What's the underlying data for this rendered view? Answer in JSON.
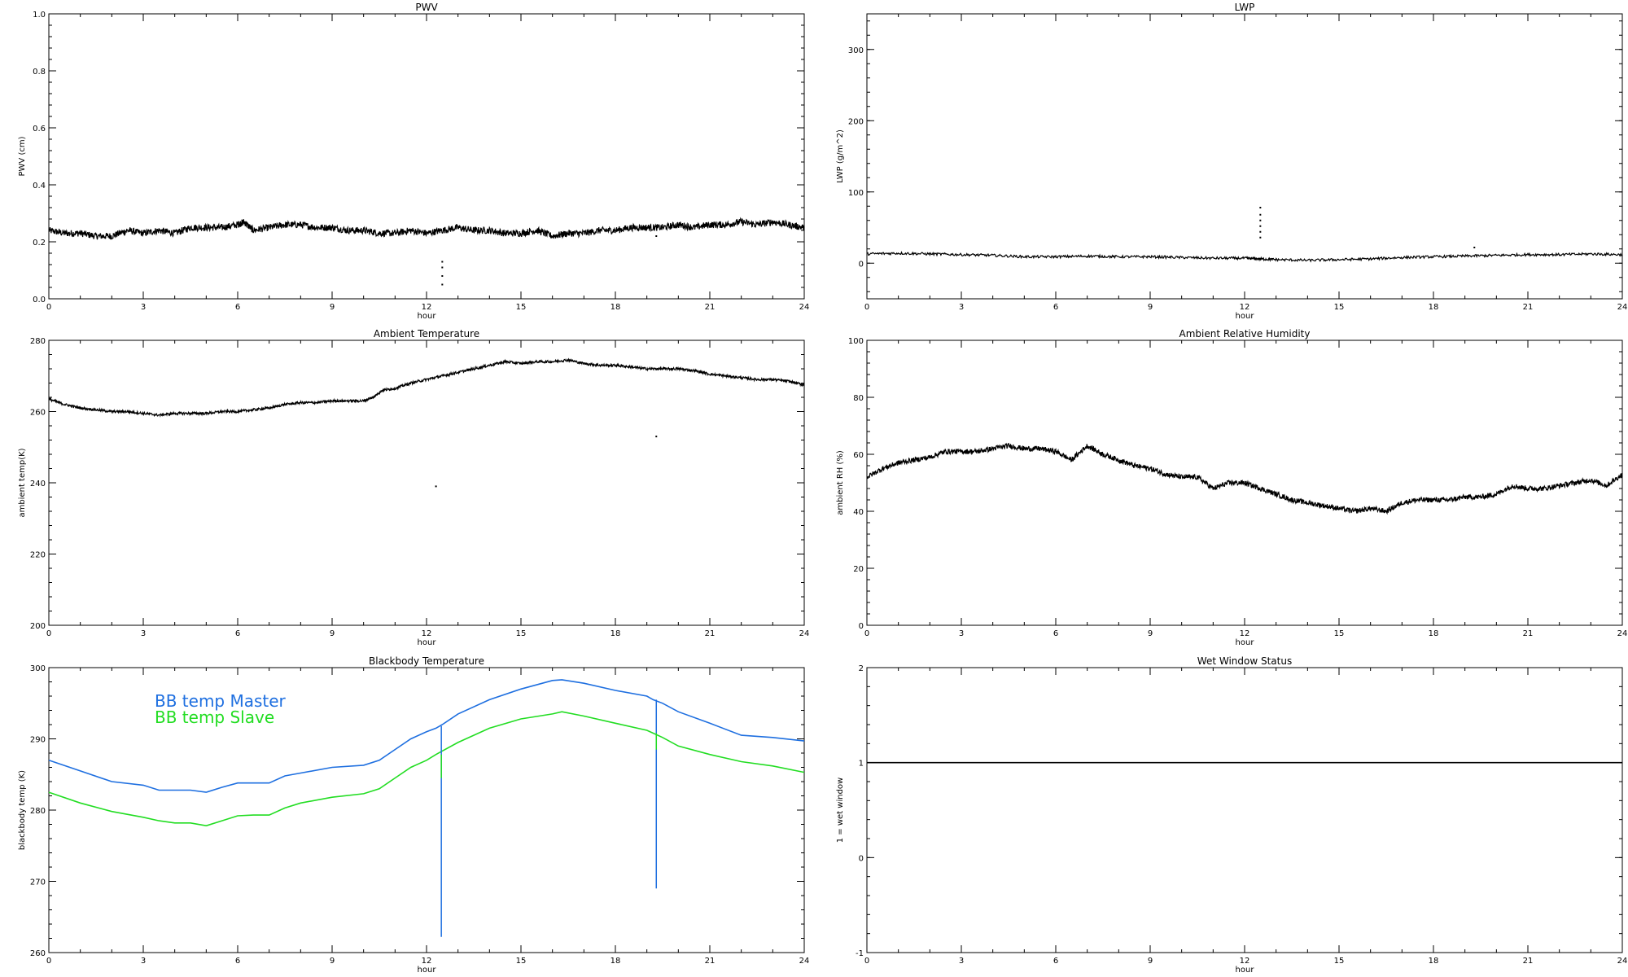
{
  "chart_data": [
    {
      "id": "pwv",
      "type": "line",
      "title": "PWV",
      "xlabel": "hour",
      "ylabel": "PWV (cm)",
      "xlim": [
        0,
        24
      ],
      "ylim": [
        0,
        1
      ],
      "xticks": [
        "0",
        "3",
        "6",
        "9",
        "12",
        "15",
        "18",
        "21",
        "24"
      ],
      "yticks": [
        "0.0",
        "0.2",
        "0.4",
        "0.6",
        "0.8",
        "1.0"
      ],
      "noise": 0.012,
      "series": [
        {
          "color": "#000000",
          "x": [
            0,
            0.5,
            1,
            1.5,
            2,
            2.5,
            3,
            3.5,
            4,
            4.5,
            5,
            5.5,
            6,
            6.2,
            6.5,
            7,
            7.5,
            8,
            8.5,
            9,
            9.5,
            10,
            10.5,
            11,
            11.5,
            12,
            12.5,
            13,
            13.5,
            14,
            14.5,
            15,
            15.5,
            16,
            16.5,
            17,
            17.5,
            18,
            18.5,
            19,
            19.5,
            20,
            20.5,
            21,
            21.5,
            22,
            22.5,
            23,
            23.5,
            24
          ],
          "y": [
            0.24,
            0.23,
            0.23,
            0.22,
            0.22,
            0.24,
            0.23,
            0.24,
            0.23,
            0.25,
            0.25,
            0.25,
            0.26,
            0.27,
            0.24,
            0.25,
            0.26,
            0.26,
            0.25,
            0.25,
            0.24,
            0.24,
            0.23,
            0.23,
            0.24,
            0.23,
            0.24,
            0.25,
            0.24,
            0.24,
            0.23,
            0.23,
            0.24,
            0.22,
            0.23,
            0.23,
            0.24,
            0.24,
            0.25,
            0.25,
            0.25,
            0.26,
            0.25,
            0.26,
            0.26,
            0.27,
            0.26,
            0.27,
            0.26,
            0.25
          ]
        }
      ],
      "outliers": {
        "x": [
          12.5,
          12.5,
          12.5,
          12.5,
          19.3
        ],
        "y": [
          0.13,
          0.11,
          0.08,
          0.05,
          0.22
        ]
      }
    },
    {
      "id": "lwp",
      "type": "line",
      "title": "LWP",
      "xlabel": "hour",
      "ylabel": "LWP (g/m^2)",
      "xlim": [
        0,
        24
      ],
      "ylim": [
        -50,
        350
      ],
      "xticks": [
        "0",
        "3",
        "6",
        "9",
        "12",
        "15",
        "18",
        "21",
        "24"
      ],
      "yticks": [
        "0",
        "100",
        "200",
        "300"
      ],
      "noise": 1.8,
      "series": [
        {
          "color": "#000000",
          "x": [
            0,
            1,
            2,
            3,
            4,
            5,
            6,
            7,
            8,
            9,
            10,
            11,
            12,
            12.5,
            13,
            14,
            15,
            16,
            17,
            18,
            19,
            20,
            21,
            22,
            23,
            24
          ],
          "y": [
            13,
            14,
            13,
            12,
            11,
            9,
            9,
            10,
            9,
            9,
            8,
            7,
            7,
            6,
            5,
            4,
            5,
            6,
            8,
            9,
            10,
            11,
            12,
            12,
            13,
            12
          ]
        }
      ],
      "outliers": {
        "x": [
          12.5,
          12.5,
          12.5,
          12.5,
          12.5,
          12.5,
          19.3
        ],
        "y": [
          78,
          68,
          60,
          52,
          44,
          36,
          22
        ]
      }
    },
    {
      "id": "ambient-temp",
      "type": "line",
      "title": "Ambient Temperature",
      "xlabel": "hour",
      "ylabel": "ambient temp(K)",
      "xlim": [
        0,
        24
      ],
      "ylim": [
        200,
        280
      ],
      "xticks": [
        "0",
        "3",
        "6",
        "9",
        "12",
        "15",
        "18",
        "21",
        "24"
      ],
      "yticks": [
        "200",
        "220",
        "240",
        "260",
        "280"
      ],
      "noise": 0.35,
      "series": [
        {
          "color": "#000000",
          "x": [
            0,
            0.5,
            1,
            1.5,
            2,
            2.5,
            3,
            3.5,
            4,
            4.5,
            5,
            5.5,
            6,
            6.5,
            7,
            7.5,
            8,
            8.5,
            9,
            9.5,
            10,
            10.3,
            10.6,
            11,
            11.5,
            12,
            12.5,
            13,
            13.5,
            14,
            14.5,
            15,
            15.5,
            16,
            16.5,
            17,
            17.5,
            18,
            18.5,
            19,
            19.5,
            20,
            20.5,
            21,
            21.5,
            22,
            22.5,
            23,
            23.5,
            24
          ],
          "y": [
            263.5,
            262,
            261,
            260.5,
            260,
            260,
            259.5,
            259,
            259.5,
            259.5,
            259.5,
            260,
            260,
            260.5,
            261,
            262,
            262.5,
            262.5,
            263,
            263,
            263,
            264,
            266,
            266.5,
            268,
            269,
            270,
            271,
            272,
            273,
            274,
            273.5,
            274,
            274,
            274.5,
            273.5,
            273,
            273,
            272.5,
            272,
            272,
            272,
            271.5,
            270.5,
            270,
            269.5,
            269,
            269,
            268.5,
            267.5
          ]
        }
      ],
      "outliers": {
        "x": [
          12.3,
          19.3
        ],
        "y": [
          239,
          253
        ]
      }
    },
    {
      "id": "ambient-rh",
      "type": "line",
      "title": "Ambient Relative Humidity",
      "xlabel": "hour",
      "ylabel": "ambient RH (%)",
      "xlim": [
        0,
        24
      ],
      "ylim": [
        0,
        100
      ],
      "xticks": [
        "0",
        "3",
        "6",
        "9",
        "12",
        "15",
        "18",
        "21",
        "24"
      ],
      "yticks": [
        "0",
        "20",
        "40",
        "60",
        "80",
        "100"
      ],
      "noise": 0.9,
      "series": [
        {
          "color": "#000000",
          "x": [
            0,
            0.5,
            1,
            1.5,
            2,
            2.5,
            3,
            3.5,
            4,
            4.5,
            5,
            5.5,
            6,
            6.5,
            7,
            7.5,
            8,
            8.5,
            9,
            9.5,
            10,
            10.5,
            11,
            11.5,
            12,
            12.5,
            13,
            13.5,
            14,
            14.5,
            15,
            15.5,
            16,
            16.5,
            17,
            17.5,
            18,
            18.5,
            19,
            19.5,
            20,
            20.5,
            21,
            21.5,
            22,
            22.5,
            23,
            23.5,
            24
          ],
          "y": [
            52,
            55,
            57,
            58,
            59,
            61,
            61,
            61,
            62,
            63,
            62,
            62,
            61,
            58,
            63,
            60,
            58,
            56,
            55,
            53,
            52,
            52,
            48,
            50,
            50,
            48,
            46,
            44,
            43,
            42,
            41,
            40,
            41,
            40,
            43,
            44,
            44,
            44,
            45,
            45,
            46,
            49,
            48,
            48,
            49,
            50,
            51,
            49,
            53
          ]
        }
      ]
    },
    {
      "id": "bb-temp",
      "type": "line",
      "title": "Blackbody Temperature",
      "xlabel": "hour",
      "ylabel": "blackbody temp (K)",
      "xlim": [
        0,
        24
      ],
      "ylim": [
        260,
        300
      ],
      "xticks": [
        "0",
        "3",
        "6",
        "9",
        "12",
        "15",
        "18",
        "21",
        "24"
      ],
      "yticks": [
        "260",
        "270",
        "280",
        "290",
        "300"
      ],
      "noise": 0,
      "legend": "top-left",
      "series": [
        {
          "name": "BB temp Master",
          "color": "#1e6fe0",
          "x": [
            0,
            1,
            2,
            3,
            3.5,
            4,
            4.5,
            5,
            5.5,
            6,
            6.5,
            7,
            7.5,
            8,
            9,
            10,
            10.5,
            11,
            11.5,
            12,
            12.3,
            12.5,
            13,
            14,
            15,
            16,
            16.3,
            17,
            18,
            19,
            19.2,
            19.5,
            20,
            21,
            22,
            23,
            24
          ],
          "y": [
            287,
            285.5,
            284,
            283.5,
            282.8,
            282.8,
            282.8,
            282.5,
            283.2,
            283.8,
            283.8,
            283.8,
            284.8,
            285.2,
            286,
            286.3,
            287,
            288.5,
            290,
            291,
            291.5,
            292,
            293.5,
            295.5,
            297,
            298.2,
            298.3,
            297.8,
            296.8,
            296,
            295.5,
            295,
            293.8,
            292.2,
            290.5,
            290.2,
            289.7
          ]
        },
        {
          "name": "BB temp Slave",
          "color": "#22dd22",
          "x": [
            0,
            1,
            2,
            3,
            3.5,
            4,
            4.5,
            5,
            5.5,
            6,
            6.5,
            7,
            7.5,
            8,
            9,
            10,
            10.5,
            11,
            11.5,
            12,
            12.3,
            12.5,
            13,
            14,
            15,
            16,
            16.3,
            17,
            18,
            19,
            19.2,
            19.5,
            20,
            21,
            22,
            23,
            24
          ],
          "y": [
            282.5,
            281,
            279.8,
            279,
            278.5,
            278.2,
            278.2,
            277.8,
            278.5,
            279.2,
            279.3,
            279.3,
            280.3,
            281,
            281.8,
            282.3,
            283,
            284.5,
            286,
            287,
            287.8,
            288.3,
            289.5,
            291.5,
            292.8,
            293.5,
            293.8,
            293.2,
            292.2,
            291.2,
            290.8,
            290.2,
            289,
            287.8,
            286.8,
            286.2,
            285.3
          ]
        }
      ],
      "spikes": [
        {
          "x": 12.47,
          "from": 291.8,
          "to": 262.2,
          "color": "#1e6fe0"
        },
        {
          "x": 12.47,
          "from": 287.8,
          "to": 284.5,
          "color": "#22dd22"
        },
        {
          "x": 19.3,
          "from": 295.5,
          "to": 269,
          "color": "#1e6fe0"
        },
        {
          "x": 19.3,
          "from": 290.8,
          "to": 288.5,
          "color": "#22dd22"
        }
      ]
    },
    {
      "id": "wet-window",
      "type": "line",
      "title": "Wet Window Status",
      "xlabel": "hour",
      "ylabel": "1 = wet window",
      "xlim": [
        0,
        24
      ],
      "ylim": [
        -1,
        2
      ],
      "xticks": [
        "0",
        "3",
        "6",
        "9",
        "12",
        "15",
        "18",
        "21",
        "24"
      ],
      "yticks": [
        "-1",
        "0",
        "1",
        "2"
      ],
      "noise": 0,
      "series": [
        {
          "color": "#000000",
          "x": [
            0,
            24
          ],
          "y": [
            1,
            1
          ]
        }
      ]
    }
  ]
}
